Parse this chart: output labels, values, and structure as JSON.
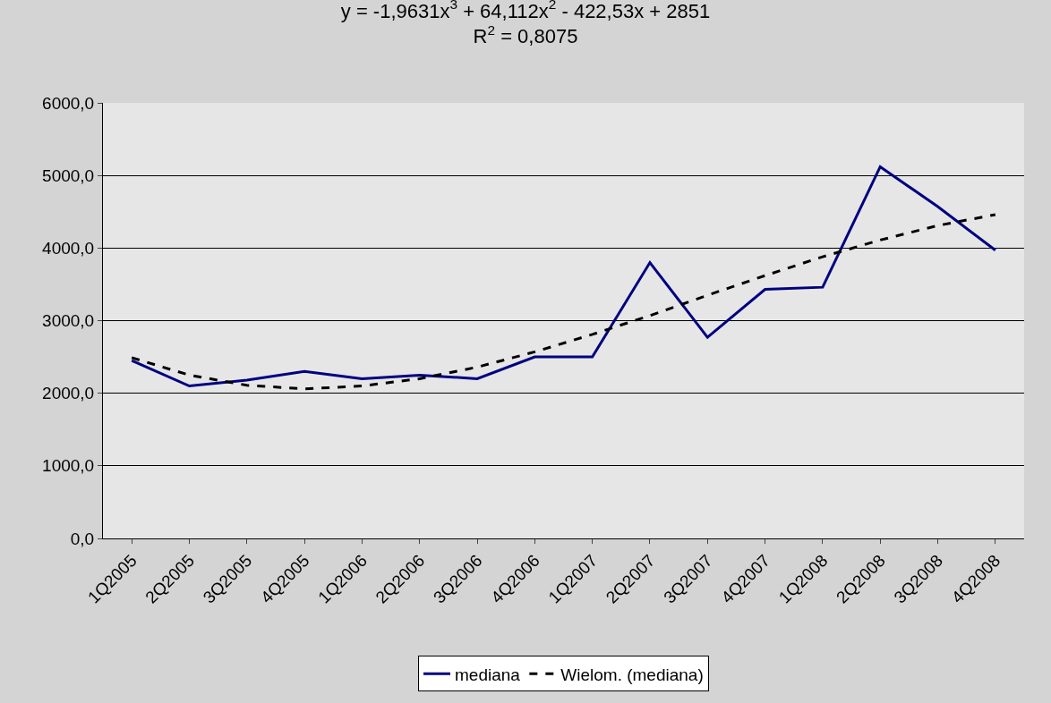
{
  "chart_data": {
    "type": "line",
    "title": "y = -1,9631x$^{3}$ + 64,112x$^{2}$ - 422,53x + 2851",
    "subtitle": "R$^{2}$ = 0,8075",
    "categories": [
      "1Q2005",
      "2Q2005",
      "3Q2005",
      "4Q2005",
      "1Q2006",
      "2Q2006",
      "3Q2006",
      "4Q2006",
      "1Q2007",
      "2Q2007",
      "3Q2007",
      "4Q2007",
      "1Q2008",
      "2Q2008",
      "3Q2008",
      "4Q2008"
    ],
    "series": [
      {
        "name": "mediana",
        "color": "#000080",
        "line_style": "solid",
        "values": [
          2450,
          2100,
          2180,
          2300,
          2200,
          2250,
          2200,
          2500,
          2500,
          3800,
          2770,
          3430,
          3460,
          5120,
          4570,
          3970
        ]
      },
      {
        "name": "Wielom. (mediana)",
        "color": "#000000",
        "line_style": "dashed",
        "values": [
          2490,
          2250,
          2110,
          2060,
          2100,
          2200,
          2360,
          2570,
          2810,
          3070,
          3350,
          3620,
          3880,
          4110,
          4310,
          4460
        ]
      }
    ],
    "ylim": [
      0,
      6000
    ],
    "yticks": [
      {
        "value": 0,
        "label": "0,0"
      },
      {
        "value": 1000,
        "label": "1000,0"
      },
      {
        "value": 2000,
        "label": "2000,0"
      },
      {
        "value": 3000,
        "label": "3000,0"
      },
      {
        "value": 4000,
        "label": "4000,0"
      },
      {
        "value": 5000,
        "label": "5000,0"
      },
      {
        "value": 6000,
        "label": "6000,0"
      }
    ],
    "grid": "y",
    "legend": "bottom",
    "marker": "none"
  }
}
